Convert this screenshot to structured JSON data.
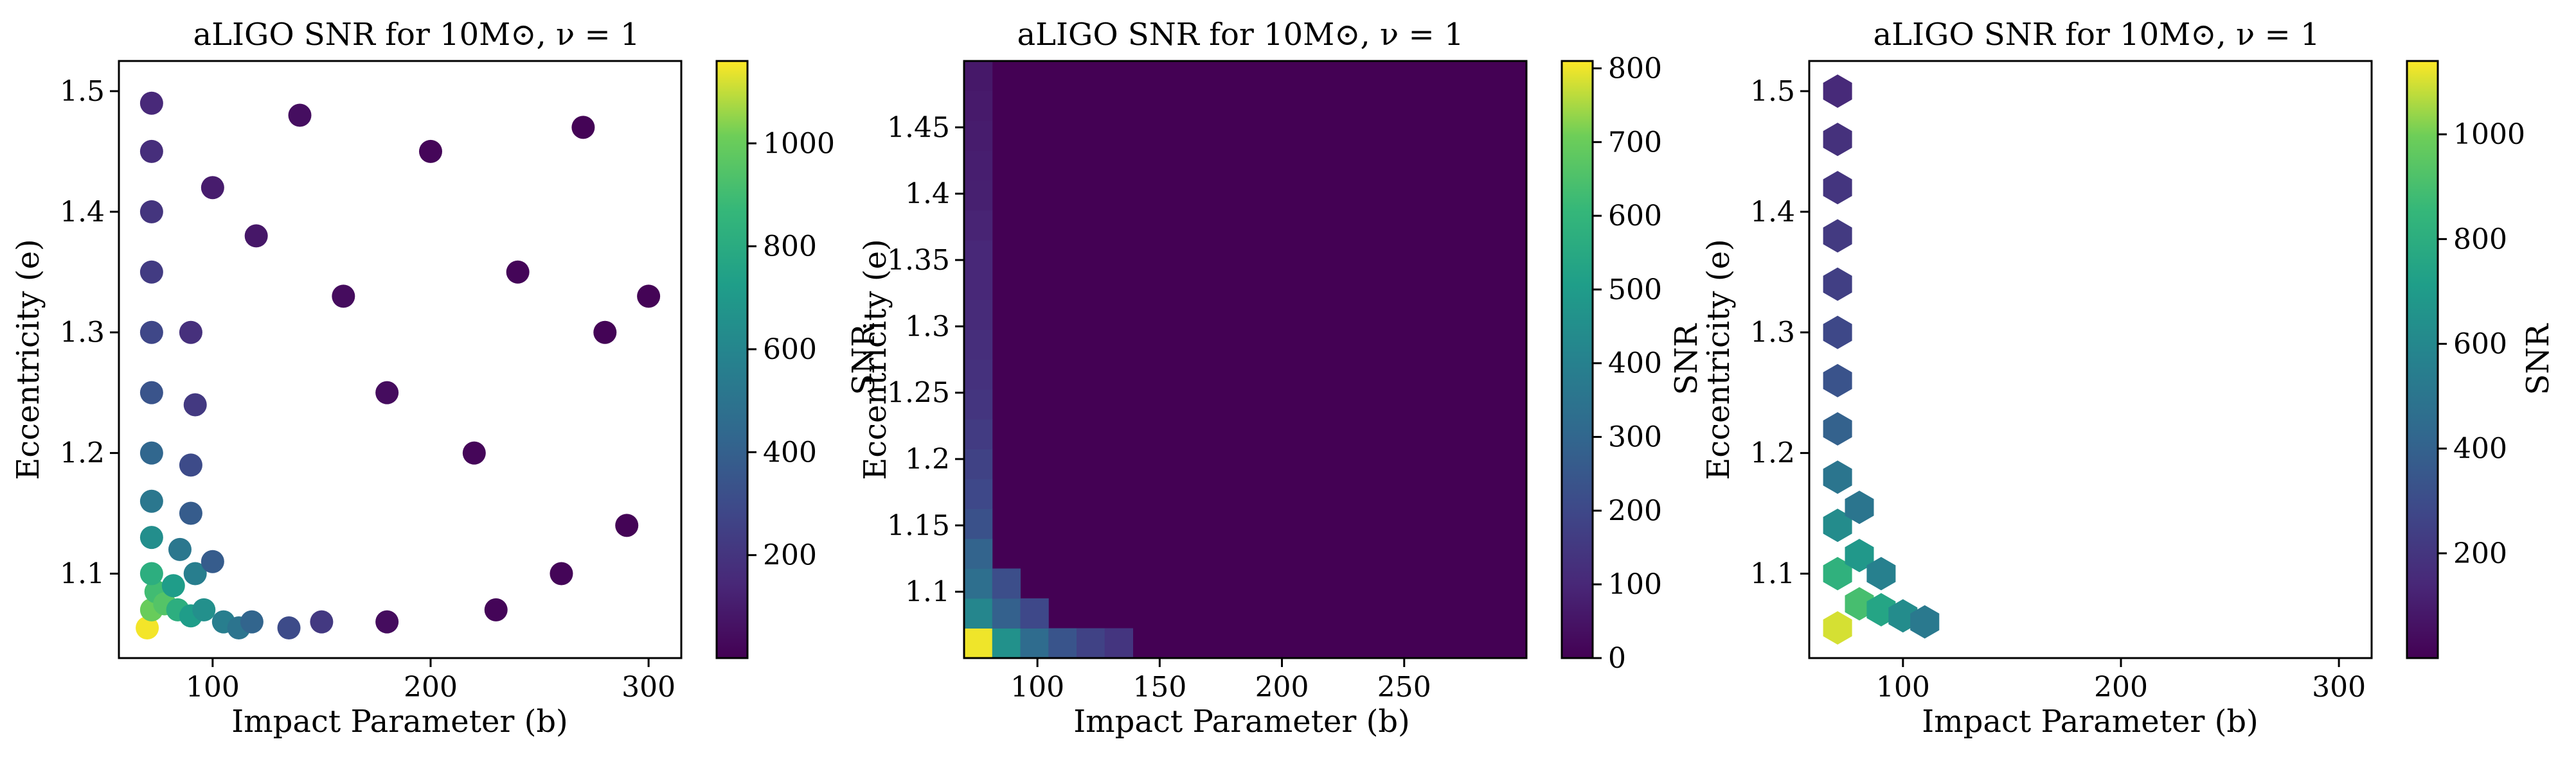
{
  "figure": {
    "background": "#ffffff"
  },
  "chart_data": [
    {
      "type": "scatter",
      "title": "aLIGO SNR for 10M⊙, ν = 1",
      "xlabel": "Impact Parameter (b)",
      "ylabel": "Eccentricity (e)",
      "xlim": [
        57,
        315
      ],
      "ylim": [
        1.03,
        1.525
      ],
      "xticks": [
        100,
        200,
        300
      ],
      "yticks": [
        1.1,
        1.2,
        1.3,
        1.4,
        1.5
      ],
      "colorbar": {
        "label": "",
        "range": [
          0,
          1160
        ],
        "ticks": [
          200,
          400,
          600,
          800,
          1000
        ],
        "colormap": "viridis"
      },
      "points": [
        {
          "b": 70,
          "e": 1.055,
          "snr": 1150
        },
        {
          "b": 72,
          "e": 1.07,
          "snr": 1000
        },
        {
          "b": 74,
          "e": 1.085,
          "snr": 900
        },
        {
          "b": 78,
          "e": 1.075,
          "snr": 950
        },
        {
          "b": 84,
          "e": 1.07,
          "snr": 820
        },
        {
          "b": 90,
          "e": 1.065,
          "snr": 720
        },
        {
          "b": 96,
          "e": 1.07,
          "snr": 650
        },
        {
          "b": 105,
          "e": 1.06,
          "snr": 560
        },
        {
          "b": 112,
          "e": 1.055,
          "snr": 500
        },
        {
          "b": 118,
          "e": 1.06,
          "snr": 420
        },
        {
          "b": 135,
          "e": 1.055,
          "snr": 300
        },
        {
          "b": 150,
          "e": 1.06,
          "snr": 220
        },
        {
          "b": 72,
          "e": 1.1,
          "snr": 820
        },
        {
          "b": 82,
          "e": 1.09,
          "snr": 720
        },
        {
          "b": 92,
          "e": 1.1,
          "snr": 560
        },
        {
          "b": 72,
          "e": 1.13,
          "snr": 640
        },
        {
          "b": 85,
          "e": 1.12,
          "snr": 520
        },
        {
          "b": 100,
          "e": 1.11,
          "snr": 380
        },
        {
          "b": 72,
          "e": 1.16,
          "snr": 520
        },
        {
          "b": 90,
          "e": 1.15,
          "snr": 380
        },
        {
          "b": 72,
          "e": 1.2,
          "snr": 430
        },
        {
          "b": 90,
          "e": 1.19,
          "snr": 300
        },
        {
          "b": 72,
          "e": 1.25,
          "snr": 340
        },
        {
          "b": 92,
          "e": 1.24,
          "snr": 220
        },
        {
          "b": 72,
          "e": 1.3,
          "snr": 280
        },
        {
          "b": 90,
          "e": 1.3,
          "snr": 180
        },
        {
          "b": 72,
          "e": 1.35,
          "snr": 230
        },
        {
          "b": 72,
          "e": 1.4,
          "snr": 200
        },
        {
          "b": 72,
          "e": 1.45,
          "snr": 170
        },
        {
          "b": 72,
          "e": 1.49,
          "snr": 150
        },
        {
          "b": 100,
          "e": 1.42,
          "snr": 100
        },
        {
          "b": 120,
          "e": 1.38,
          "snr": 80
        },
        {
          "b": 140,
          "e": 1.48,
          "snr": 50
        },
        {
          "b": 160,
          "e": 1.33,
          "snr": 40
        },
        {
          "b": 180,
          "e": 1.25,
          "snr": 40
        },
        {
          "b": 200,
          "e": 1.45,
          "snr": 20
        },
        {
          "b": 220,
          "e": 1.2,
          "snr": 20
        },
        {
          "b": 240,
          "e": 1.35,
          "snr": 15
        },
        {
          "b": 260,
          "e": 1.1,
          "snr": 15
        },
        {
          "b": 280,
          "e": 1.3,
          "snr": 10
        },
        {
          "b": 300,
          "e": 1.33,
          "snr": 10
        },
        {
          "b": 290,
          "e": 1.14,
          "snr": 10
        },
        {
          "b": 230,
          "e": 1.07,
          "snr": 15
        },
        {
          "b": 270,
          "e": 1.47,
          "snr": 10
        },
        {
          "b": 180,
          "e": 1.06,
          "snr": 40
        }
      ]
    },
    {
      "type": "heatmap",
      "title": "aLIGO SNR for 10M⊙, ν = 1",
      "xlabel": "Impact Parameter (b)",
      "ylabel": "Eccentricity (e)",
      "overlap_label": "SNR",
      "x_range": [
        70,
        300
      ],
      "y_range": [
        1.05,
        1.5
      ],
      "bins": [
        20,
        20
      ],
      "xticks": [
        100,
        150,
        200,
        250
      ],
      "yticks": [
        1.1,
        1.15,
        1.2,
        1.25,
        1.3,
        1.35,
        1.4,
        1.45
      ],
      "colorbar": {
        "label": "SNR",
        "range": [
          0,
          810
        ],
        "ticks": [
          0,
          100,
          200,
          300,
          400,
          500,
          600,
          700,
          800
        ],
        "colormap": "viridis"
      },
      "cells": [
        {
          "ix": 0,
          "iy": 0,
          "snr": 800
        },
        {
          "ix": 1,
          "iy": 0,
          "snr": 460
        },
        {
          "ix": 2,
          "iy": 0,
          "snr": 320
        },
        {
          "ix": 3,
          "iy": 0,
          "snr": 240
        },
        {
          "ix": 4,
          "iy": 0,
          "snr": 180
        },
        {
          "ix": 5,
          "iy": 0,
          "snr": 140
        },
        {
          "ix": 0,
          "iy": 1,
          "snr": 420
        },
        {
          "ix": 1,
          "iy": 1,
          "snr": 280
        },
        {
          "ix": 2,
          "iy": 1,
          "snr": 200
        },
        {
          "ix": 0,
          "iy": 2,
          "snr": 330
        },
        {
          "ix": 1,
          "iy": 2,
          "snr": 220
        },
        {
          "ix": 0,
          "iy": 3,
          "snr": 290
        },
        {
          "ix": 0,
          "iy": 4,
          "snr": 230
        },
        {
          "ix": 0,
          "iy": 5,
          "snr": 200
        },
        {
          "ix": 0,
          "iy": 6,
          "snr": 180
        },
        {
          "ix": 0,
          "iy": 7,
          "snr": 160
        },
        {
          "ix": 0,
          "iy": 8,
          "snr": 140
        },
        {
          "ix": 0,
          "iy": 9,
          "snr": 130
        },
        {
          "ix": 0,
          "iy": 10,
          "snr": 120
        },
        {
          "ix": 0,
          "iy": 11,
          "snr": 110
        },
        {
          "ix": 0,
          "iy": 12,
          "snr": 100
        },
        {
          "ix": 0,
          "iy": 13,
          "snr": 100
        },
        {
          "ix": 0,
          "iy": 14,
          "snr": 90
        },
        {
          "ix": 0,
          "iy": 15,
          "snr": 80
        },
        {
          "ix": 0,
          "iy": 16,
          "snr": 75
        },
        {
          "ix": 0,
          "iy": 17,
          "snr": 70
        },
        {
          "ix": 0,
          "iy": 18,
          "snr": 65
        },
        {
          "ix": 0,
          "iy": 19,
          "snr": 60
        }
      ]
    },
    {
      "type": "hexbin",
      "title": "aLIGO SNR for 10M⊙, ν = 1",
      "xlabel": "Impact Parameter (b)",
      "ylabel": "Eccentricity (e)",
      "xlim": [
        57,
        315
      ],
      "ylim": [
        1.03,
        1.525
      ],
      "gridsize": 25,
      "xticks": [
        100,
        200,
        300
      ],
      "yticks": [
        1.1,
        1.2,
        1.3,
        1.4,
        1.5
      ],
      "colorbar": {
        "label": "SNR",
        "range": [
          0,
          1140
        ],
        "ticks": [
          200,
          400,
          600,
          800,
          1000
        ],
        "colormap": "viridis"
      },
      "empty_hexes": [
        [
          185,
          1.35
        ],
        [
          200,
          1.42
        ],
        [
          220,
          1.3
        ],
        [
          240,
          1.22
        ],
        [
          250,
          1.45
        ],
        [
          260,
          1.18
        ],
        [
          270,
          1.33
        ],
        [
          280,
          1.12
        ],
        [
          160,
          1.28
        ],
        [
          230,
          1.38
        ],
        [
          290,
          1.25
        ],
        [
          210,
          1.48
        ],
        [
          240,
          1.05
        ],
        [
          300,
          1.4
        ]
      ],
      "hexes": [
        {
          "b": 70,
          "e": 1.055,
          "snr": 1100
        },
        {
          "b": 80,
          "e": 1.075,
          "snr": 900
        },
        {
          "b": 90,
          "e": 1.07,
          "snr": 750
        },
        {
          "b": 100,
          "e": 1.065,
          "snr": 620
        },
        {
          "b": 110,
          "e": 1.06,
          "snr": 520
        },
        {
          "b": 70,
          "e": 1.1,
          "snr": 820
        },
        {
          "b": 80,
          "e": 1.115,
          "snr": 680
        },
        {
          "b": 90,
          "e": 1.1,
          "snr": 560
        },
        {
          "b": 70,
          "e": 1.14,
          "snr": 620
        },
        {
          "b": 80,
          "e": 1.155,
          "snr": 500
        },
        {
          "b": 70,
          "e": 1.18,
          "snr": 500
        },
        {
          "b": 70,
          "e": 1.22,
          "snr": 400
        },
        {
          "b": 70,
          "e": 1.26,
          "snr": 330
        },
        {
          "b": 70,
          "e": 1.3,
          "snr": 280
        },
        {
          "b": 70,
          "e": 1.34,
          "snr": 240
        },
        {
          "b": 70,
          "e": 1.38,
          "snr": 220
        },
        {
          "b": 70,
          "e": 1.42,
          "snr": 200
        },
        {
          "b": 70,
          "e": 1.46,
          "snr": 180
        },
        {
          "b": 70,
          "e": 1.5,
          "snr": 150
        }
      ]
    }
  ]
}
